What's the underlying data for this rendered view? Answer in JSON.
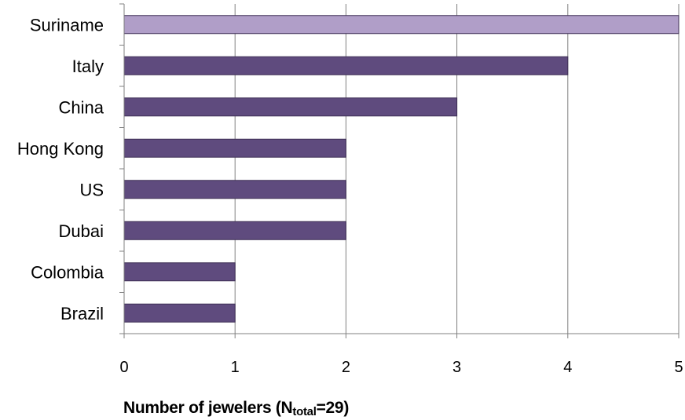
{
  "chart_data": {
    "type": "bar",
    "orientation": "horizontal",
    "categories": [
      "Suriname",
      "Italy",
      "China",
      "Hong Kong",
      "US",
      "Dubai",
      "Colombia",
      "Brazil"
    ],
    "values": [
      5,
      4,
      3,
      2,
      2,
      2,
      1,
      1
    ],
    "xlim": [
      0,
      5
    ],
    "xticks": [
      "0",
      "1",
      "2",
      "3",
      "4",
      "5"
    ],
    "xlabel": {
      "prefix": "Number of jewelers (N",
      "subscript": "total",
      "suffix": "=29)"
    },
    "grid": "vertical",
    "colors": {
      "default_bar": "#5f4b7e",
      "highlight_bar": "#b09ec8",
      "bar_edge": "#3e2f55",
      "grid": "#808080",
      "axis": "#808080"
    },
    "highlight_category": "Suriname"
  }
}
